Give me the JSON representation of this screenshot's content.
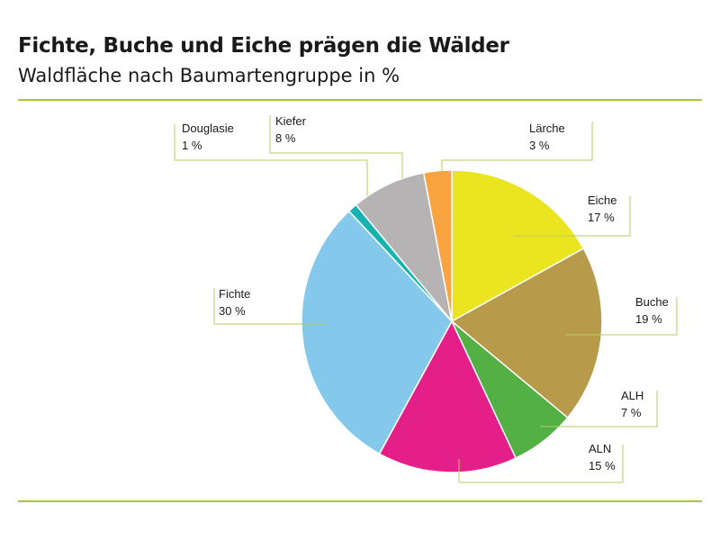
{
  "chart_data": {
    "type": "pie",
    "title": "Fichte, Buche und Eiche prägen die Wälder",
    "subtitle": "Waldfläche nach Baumartengruppe in %",
    "slices": [
      {
        "label": "Eiche",
        "value": 17,
        "display": "17 %",
        "color": "#EBE421"
      },
      {
        "label": "Buche",
        "value": 19,
        "display": "19 %",
        "color": "#B89A4B"
      },
      {
        "label": "ALH",
        "value": 7,
        "display": "7 %",
        "color": "#52B045"
      },
      {
        "label": "ALN",
        "value": 15,
        "display": "15 %",
        "color": "#E51F89"
      },
      {
        "label": "Fichte",
        "value": 30,
        "display": "30 %",
        "color": "#84C9EB"
      },
      {
        "label": "Douglasie",
        "value": 1,
        "display": "1 %",
        "color": "#17B3B0"
      },
      {
        "label": "Kiefer",
        "value": 8,
        "display": "8 %",
        "color": "#B5B3B4"
      },
      {
        "label": "Lärche",
        "value": 3,
        "display": "3 %",
        "color": "#F8A440"
      }
    ],
    "start_angle_deg": 0,
    "direction": "clockwise",
    "legend": "none",
    "data_labels": "outside with leader lines"
  },
  "colors": {
    "rule": "#A8C83C",
    "leader": "#B5CE62"
  }
}
